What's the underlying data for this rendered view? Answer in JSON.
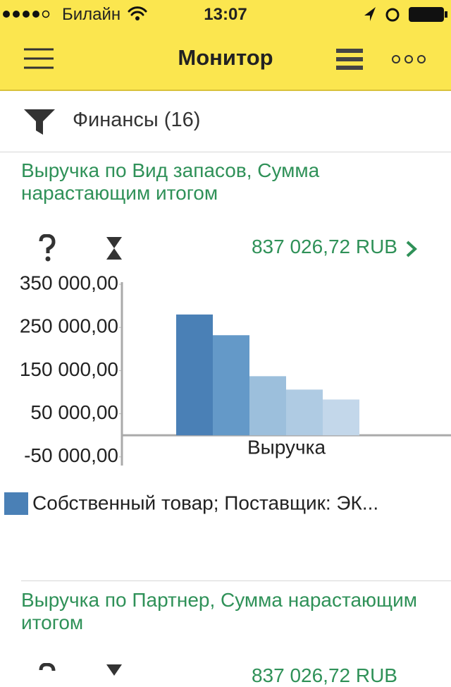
{
  "status_bar": {
    "carrier": "Билайн",
    "time": "13:07"
  },
  "header": {
    "title": "Монитор"
  },
  "filter": {
    "label": "Финансы (16)"
  },
  "cards": [
    {
      "title": "Выручка по Вид запасов, Сумма нарастающим итогом",
      "total": "837 026,72 RUB",
      "chart_data": {
        "type": "bar",
        "categories": [
          "Выручка"
        ],
        "series": [
          {
            "name": "Собственный товар; Поставщик: ЭК...",
            "color": "#4a80b6",
            "values": [
              280000
            ]
          },
          {
            "color": "#6499c8",
            "values": [
              232000
            ]
          },
          {
            "color": "#9cbfdc",
            "values": [
              137000
            ]
          },
          {
            "color": "#afcbe3",
            "values": [
              106000
            ]
          },
          {
            "color": "#c3d7ea",
            "values": [
              83000
            ]
          }
        ],
        "ylim": [
          -70000,
          355000
        ],
        "yticks": [
          {
            "value": -50000,
            "label": "-50 000,00"
          },
          {
            "value": 50000,
            "label": "50 000,00"
          },
          {
            "value": 150000,
            "label": "150 000,00"
          },
          {
            "value": 250000,
            "label": "250 000,00"
          },
          {
            "value": 350000,
            "label": "350 000,00"
          }
        ]
      }
    },
    {
      "title": "Выручка по Партнер, Сумма нарастающим итогом",
      "total": "837 026,72 RUB"
    }
  ]
}
